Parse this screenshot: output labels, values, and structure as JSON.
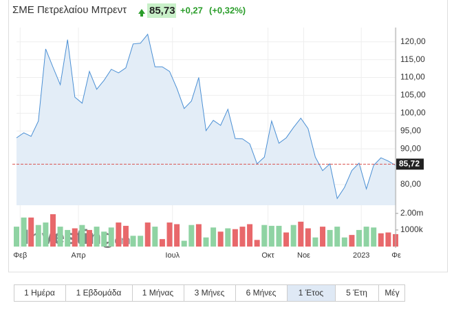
{
  "header": {
    "title": "ΣΜΕ Πετρελαίου Μπρεντ",
    "price": "85,73",
    "change": "+0,27",
    "change_pct": "(+0,32%)"
  },
  "chart_data": [
    {
      "type": "area",
      "series": [
        {
          "color": "#4a8fd4",
          "values": [
            93.1,
            94.5,
            93.5,
            97.8,
            118,
            112.9,
            108,
            120.6,
            104.5,
            102.8,
            111.7,
            106.7,
            109.2,
            112.3,
            111.3,
            112.7,
            119.4,
            119.6,
            122.1,
            113,
            113,
            111.7,
            107,
            101.3,
            103.4,
            110,
            95.1,
            98,
            96.6,
            101.1,
            92.9,
            92.8,
            91.4,
            85.8,
            87.7,
            97.8,
            91.6,
            93.1,
            96,
            98.6,
            95.7,
            87.7,
            83.9,
            85.8,
            76.1,
            79.2,
            83.9,
            86,
            78.8,
            85.4,
            87.5,
            86.6,
            85.4
          ]
        }
      ],
      "xlim": [
        0,
        52
      ],
      "xticks": [
        {
          "value": 0.5,
          "label": "Φεβ"
        },
        {
          "value": 8.5,
          "label": "Απρ"
        },
        {
          "value": 21.4,
          "label": "Ιουλ"
        },
        {
          "value": 34.5,
          "label": "Οκτ"
        },
        {
          "value": 39.4,
          "label": "Νοε"
        },
        {
          "value": 47.3,
          "label": "2023"
        },
        {
          "value": 52.1,
          "label": "Φε"
        }
      ],
      "ylim": [
        74.2,
        124
      ],
      "yticks": [
        {
          "value": 80,
          "label": "80,00"
        },
        {
          "value": 90,
          "label": "90,00"
        },
        {
          "value": 95,
          "label": "95,00"
        },
        {
          "value": 100,
          "label": "100,00"
        },
        {
          "value": 105,
          "label": "105,00"
        },
        {
          "value": 110,
          "label": "110,00"
        },
        {
          "value": 115,
          "label": "115,00"
        },
        {
          "value": 120,
          "label": "120,00"
        }
      ],
      "last_price": {
        "value": 85.72,
        "label": "85,72"
      },
      "watermark": "Investing",
      "watermark_suffix": ".com",
      "grid": true
    },
    {
      "type": "bar",
      "values": [
        1200000,
        1750000,
        1750000,
        1300000,
        1450000,
        1950000,
        1200000,
        1000000,
        1100000,
        1300000,
        1000000,
        1200000,
        900000,
        1150000,
        1450000,
        1250000,
        650000,
        650000,
        1450000,
        1200000,
        450000,
        1450000,
        1350000,
        350000,
        1300000,
        1350000,
        550000,
        1150000,
        900000,
        1100000,
        1050000,
        1200000,
        1350000,
        400000,
        1300000,
        1250000,
        1250000,
        850000,
        1300000,
        1500000,
        1100000,
        550000,
        1200000,
        1000000,
        1200000,
        550000,
        700000,
        1000000,
        1200000,
        1150000,
        800000,
        850000,
        750000
      ],
      "colors": [
        "#8fd3a3",
        "#8fd3a3",
        "#e8686b",
        "#8fd3a3",
        "#8fd3a3",
        "#e8686b",
        "#8fd3a3",
        "#8fd3a3",
        "#e8686b",
        "#8fd3a3",
        "#e8686b",
        "#8fd3a3",
        "#8fd3a3",
        "#8fd3a3",
        "#e8686b",
        "#e8686b",
        "#8fd3a3",
        "#8fd3a3",
        "#e8686b",
        "#8fd3a3",
        "#e8686b",
        "#e8686b",
        "#e8686b",
        "#8fd3a3",
        "#8fd3a3",
        "#e8686b",
        "#8fd3a3",
        "#8fd3a3",
        "#e8686b",
        "#8fd3a3",
        "#e8686b",
        "#e8686b",
        "#e8686b",
        "#e8686b",
        "#8fd3a3",
        "#8fd3a3",
        "#8fd3a3",
        "#e8686b",
        "#8fd3a3",
        "#e8686b",
        "#e8686b",
        "#8fd3a3",
        "#e8686b",
        "#8fd3a3",
        "#8fd3a3",
        "#8fd3a3",
        "#e8686b",
        "#8fd3a3",
        "#8fd3a3",
        "#8fd3a3",
        "#e8686b",
        "#e8686b",
        "#e8686b"
      ],
      "xlim": [
        0,
        52
      ],
      "ylim": [
        0,
        2200000
      ],
      "yticks": [
        {
          "value": 2000000,
          "label": "2.00m"
        },
        {
          "value": 1000000,
          "label": "1000k"
        }
      ]
    }
  ],
  "range_buttons": {
    "labels": [
      "1 Ημέρα",
      "1 Εβδομάδα",
      "1 Μήνας",
      "3 Μήνες",
      "6 Μήνες",
      "1 Έτος",
      "5 Έτη",
      "Μέγ"
    ],
    "selected": 5
  }
}
